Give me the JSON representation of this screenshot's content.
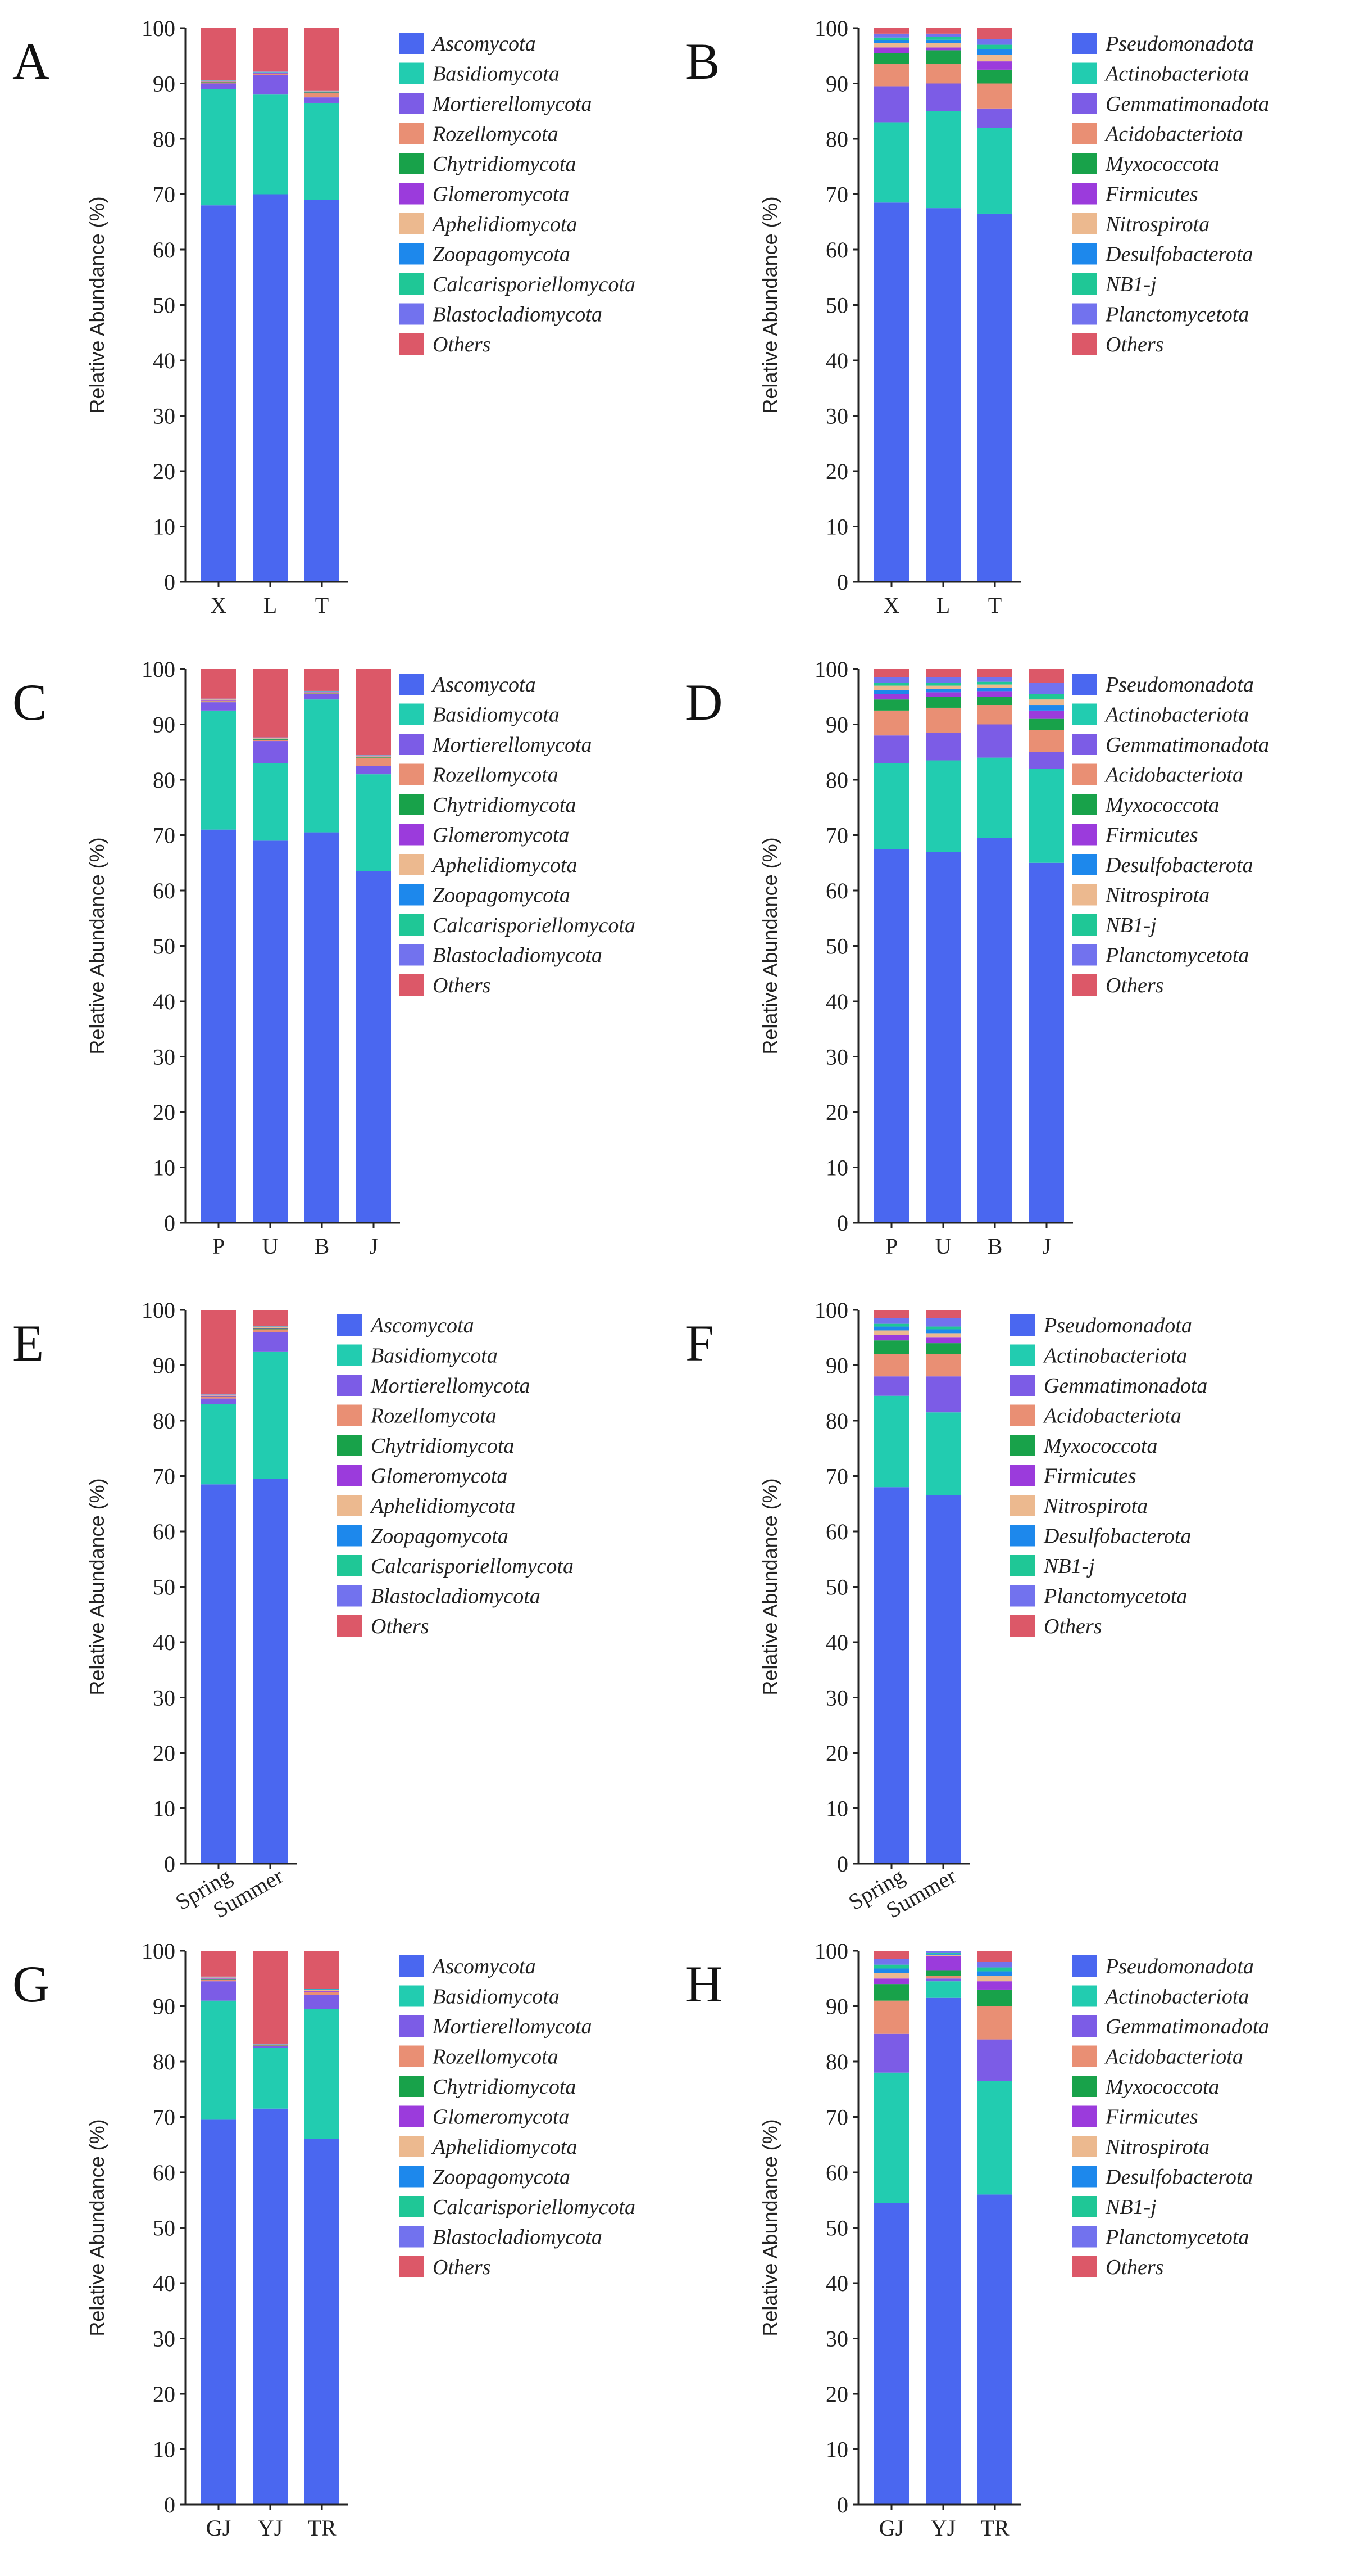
{
  "palette": {
    "Ascomycota": "#4a67f0",
    "Basidiomycota": "#22ccb0",
    "Mortierellomycota": "#7c5ce6",
    "Rozellomycota": "#e98f74",
    "Chytridiomycota": "#18a24a",
    "Glomeromycota": "#9b3bdc",
    "Aphelidiomycota": "#ecb98f",
    "Zoopagomycota": "#1d88ec",
    "Calcarisporiellomycota": "#1fc796",
    "Blastocladiomycota": "#7272ee",
    "Others": "#dc5868",
    "Pseudomonadota": "#4a67f0",
    "Actinobacteriota": "#22ccb0",
    "Gemmatimonadota": "#7c5ce6",
    "Acidobacteriota": "#e98f74",
    "Myxococcota": "#18a24a",
    "Firmicutes": "#9b3bdc",
    "Nitrospirota": "#ecb98f",
    "Desulfobacterota": "#1d88ec",
    "NB1-j": "#1fc796",
    "Planctomycetota": "#7272ee"
  },
  "chart_data": [
    {
      "panel": "A",
      "type": "bar",
      "stacked": true,
      "ylabel": "Relative Abundance (%)",
      "ylim": [
        0,
        100
      ],
      "yticks": [
        "0",
        "10",
        "20",
        "30",
        "40",
        "50",
        "60",
        "70",
        "80",
        "90",
        "100"
      ],
      "categories": [
        "X",
        "L",
        "T"
      ],
      "legend": [
        "Ascomycota",
        "Basidiomycota",
        "Mortierellomycota",
        "Rozellomycota",
        "Chytridiomycota",
        "Glomeromycota",
        "Aphelidiomycota",
        "Zoopagomycota",
        "Calcarisporiellomycota",
        "Blastocladiomycota",
        "Others"
      ],
      "series": [
        {
          "name": "Ascomycota",
          "values": [
            68,
            70,
            69
          ]
        },
        {
          "name": "Basidiomycota",
          "values": [
            21,
            18,
            17.5
          ]
        },
        {
          "name": "Mortierellomycota",
          "values": [
            1,
            3.5,
            1
          ]
        },
        {
          "name": "Rozellomycota",
          "values": [
            0.2,
            0.2,
            0.8
          ]
        },
        {
          "name": "Chytridiomycota",
          "values": [
            0.1,
            0.1,
            0.1
          ]
        },
        {
          "name": "Glomeromycota",
          "values": [
            0.1,
            0.1,
            0.1
          ]
        },
        {
          "name": "Aphelidiomycota",
          "values": [
            0.1,
            0.1,
            0.1
          ]
        },
        {
          "name": "Zoopagomycota",
          "values": [
            0.05,
            0.05,
            0.05
          ]
        },
        {
          "name": "Calcarisporiellomycota",
          "values": [
            0.05,
            0.05,
            0.05
          ]
        },
        {
          "name": "Blastocladiomycota",
          "values": [
            0.05,
            0.05,
            0.05
          ]
        },
        {
          "name": "Others",
          "values": [
            9.35,
            7.95,
            11.25
          ]
        }
      ]
    },
    {
      "panel": "B",
      "type": "bar",
      "stacked": true,
      "ylabel": "Relative Abundance (%)",
      "ylim": [
        0,
        100
      ],
      "yticks": [
        "0",
        "10",
        "20",
        "30",
        "40",
        "50",
        "60",
        "70",
        "80",
        "90",
        "100"
      ],
      "categories": [
        "X",
        "L",
        "T"
      ],
      "legend": [
        "Pseudomonadota",
        "Actinobacteriota",
        "Gemmatimonadota",
        "Acidobacteriota",
        "Myxococcota",
        "Firmicutes",
        "Nitrospirota",
        "Desulfobacterota",
        "NB1-j",
        "Planctomycetota",
        "Others"
      ],
      "series": [
        {
          "name": "Pseudomonadota",
          "values": [
            68.5,
            67.5,
            66.5
          ]
        },
        {
          "name": "Actinobacteriota",
          "values": [
            14.5,
            17.5,
            15.5
          ]
        },
        {
          "name": "Gemmatimonadota",
          "values": [
            6.5,
            5,
            3.5
          ]
        },
        {
          "name": "Acidobacteriota",
          "values": [
            4,
            3.5,
            4.5
          ]
        },
        {
          "name": "Myxococcota",
          "values": [
            2,
            2.5,
            2.5
          ]
        },
        {
          "name": "Firmicutes",
          "values": [
            1,
            0.5,
            1.5
          ]
        },
        {
          "name": "Nitrospirota",
          "values": [
            0.8,
            0.8,
            1.2
          ]
        },
        {
          "name": "Desulfobacterota",
          "values": [
            0.5,
            0.6,
            1
          ]
        },
        {
          "name": "NB1-j",
          "values": [
            0.5,
            0.5,
            0.8
          ]
        },
        {
          "name": "Planctomycetota",
          "values": [
            0.7,
            0.6,
            1
          ]
        },
        {
          "name": "Others",
          "values": [
            1,
            1,
            2
          ]
        }
      ]
    },
    {
      "panel": "C",
      "type": "bar",
      "stacked": true,
      "ylabel": "Relative Abundance (%)",
      "ylim": [
        0,
        100
      ],
      "yticks": [
        "0",
        "10",
        "20",
        "30",
        "40",
        "50",
        "60",
        "70",
        "80",
        "90",
        "100"
      ],
      "categories": [
        "P",
        "U",
        "B",
        "J"
      ],
      "legend": [
        "Ascomycota",
        "Basidiomycota",
        "Mortierellomycota",
        "Rozellomycota",
        "Chytridiomycota",
        "Glomeromycota",
        "Aphelidiomycota",
        "Zoopagomycota",
        "Calcarisporiellomycota",
        "Blastocladiomycota",
        "Others"
      ],
      "series": [
        {
          "name": "Ascomycota",
          "values": [
            71,
            69,
            70.5,
            63.5
          ]
        },
        {
          "name": "Basidiomycota",
          "values": [
            21.5,
            14,
            24,
            17.5
          ]
        },
        {
          "name": "Mortierellomycota",
          "values": [
            1.5,
            4,
            1,
            1.5
          ]
        },
        {
          "name": "Rozellomycota",
          "values": [
            0.2,
            0.2,
            0.1,
            1.5
          ]
        },
        {
          "name": "Chytridiomycota",
          "values": [
            0.1,
            0.1,
            0.1,
            0.1
          ]
        },
        {
          "name": "Glomeromycota",
          "values": [
            0.1,
            0.1,
            0.1,
            0.1
          ]
        },
        {
          "name": "Aphelidiomycota",
          "values": [
            0.1,
            0.1,
            0.1,
            0.1
          ]
        },
        {
          "name": "Zoopagomycota",
          "values": [
            0.05,
            0.05,
            0.05,
            0.05
          ]
        },
        {
          "name": "Calcarisporiellomycota",
          "values": [
            0.05,
            0.05,
            0.05,
            0.05
          ]
        },
        {
          "name": "Blastocladiomycota",
          "values": [
            0.05,
            0.05,
            0.05,
            0.05
          ]
        },
        {
          "name": "Others",
          "values": [
            5.35,
            12.35,
            3.95,
            15.55
          ]
        }
      ]
    },
    {
      "panel": "D",
      "type": "bar",
      "stacked": true,
      "ylabel": "Relative Abundance (%)",
      "ylim": [
        0,
        100
      ],
      "yticks": [
        "0",
        "10",
        "20",
        "30",
        "40",
        "50",
        "60",
        "70",
        "80",
        "90",
        "100"
      ],
      "categories": [
        "P",
        "U",
        "B",
        "J"
      ],
      "legend": [
        "Pseudomonadota",
        "Actinobacteriota",
        "Gemmatimonadota",
        "Acidobacteriota",
        "Myxococcota",
        "Firmicutes",
        "Desulfobacterota",
        "Nitrospirota",
        "NB1-j",
        "Planctomycetota",
        "Others"
      ],
      "series": [
        {
          "name": "Pseudomonadota",
          "values": [
            67.5,
            67,
            69.5,
            65
          ]
        },
        {
          "name": "Actinobacteriota",
          "values": [
            15.5,
            16.5,
            14.5,
            17
          ]
        },
        {
          "name": "Gemmatimonadota",
          "values": [
            5,
            5,
            6,
            3
          ]
        },
        {
          "name": "Acidobacteriota",
          "values": [
            4.5,
            4.5,
            3.5,
            4
          ]
        },
        {
          "name": "Myxococcota",
          "values": [
            2,
            2,
            1.5,
            2
          ]
        },
        {
          "name": "Firmicutes",
          "values": [
            1,
            0.8,
            1,
            1.5
          ]
        },
        {
          "name": "Desulfobacterota",
          "values": [
            0.7,
            0.6,
            0.6,
            1
          ]
        },
        {
          "name": "Nitrospirota",
          "values": [
            0.8,
            0.6,
            0.6,
            1
          ]
        },
        {
          "name": "NB1-j",
          "values": [
            0.5,
            0.5,
            0.5,
            1
          ]
        },
        {
          "name": "Planctomycetota",
          "values": [
            1,
            1,
            0.8,
            2
          ]
        },
        {
          "name": "Others",
          "values": [
            1.5,
            1.5,
            1.5,
            2.5
          ]
        }
      ]
    },
    {
      "panel": "E",
      "type": "bar",
      "stacked": true,
      "ylabel": "Relative Abundance (%)",
      "ylim": [
        0,
        100
      ],
      "yticks": [
        "0",
        "10",
        "20",
        "30",
        "40",
        "50",
        "60",
        "70",
        "80",
        "90",
        "100"
      ],
      "categories": [
        "Spring",
        "Summer"
      ],
      "rotate_categories": true,
      "legend": [
        "Ascomycota",
        "Basidiomycota",
        "Mortierellomycota",
        "Rozellomycota",
        "Chytridiomycota",
        "Glomeromycota",
        "Aphelidiomycota",
        "Zoopagomycota",
        "Calcarisporiellomycota",
        "Blastocladiomycota",
        "Others"
      ],
      "series": [
        {
          "name": "Ascomycota",
          "values": [
            68.5,
            69.5
          ]
        },
        {
          "name": "Basidiomycota",
          "values": [
            14.5,
            23
          ]
        },
        {
          "name": "Mortierellomycota",
          "values": [
            1,
            3.5
          ]
        },
        {
          "name": "Rozellomycota",
          "values": [
            0.3,
            0.5
          ]
        },
        {
          "name": "Chytridiomycota",
          "values": [
            0.1,
            0.1
          ]
        },
        {
          "name": "Glomeromycota",
          "values": [
            0.1,
            0.1
          ]
        },
        {
          "name": "Aphelidiomycota",
          "values": [
            0.1,
            0.3
          ]
        },
        {
          "name": "Zoopagomycota",
          "values": [
            0.05,
            0.05
          ]
        },
        {
          "name": "Calcarisporiellomycota",
          "values": [
            0.05,
            0.05
          ]
        },
        {
          "name": "Blastocladiomycota",
          "values": [
            0.05,
            0.05
          ]
        },
        {
          "name": "Others",
          "values": [
            15.25,
            2.85
          ]
        }
      ]
    },
    {
      "panel": "F",
      "type": "bar",
      "stacked": true,
      "ylabel": "Relative Abundance (%)",
      "ylim": [
        0,
        100
      ],
      "yticks": [
        "0",
        "10",
        "20",
        "30",
        "40",
        "50",
        "60",
        "70",
        "80",
        "90",
        "100"
      ],
      "categories": [
        "Spring",
        "Summer"
      ],
      "rotate_categories": true,
      "legend": [
        "Pseudomonadota",
        "Actinobacteriota",
        "Gemmatimonadota",
        "Acidobacteriota",
        "Myxococcota",
        "Firmicutes",
        "Nitrospirota",
        "Desulfobacterota",
        "NB1-j",
        "Planctomycetota",
        "Others"
      ],
      "series": [
        {
          "name": "Pseudomonadota",
          "values": [
            68,
            66.5
          ]
        },
        {
          "name": "Actinobacteriota",
          "values": [
            16.5,
            15
          ]
        },
        {
          "name": "Gemmatimonadota",
          "values": [
            3.5,
            6.5
          ]
        },
        {
          "name": "Acidobacteriota",
          "values": [
            4,
            4
          ]
        },
        {
          "name": "Myxococcota",
          "values": [
            2.5,
            2
          ]
        },
        {
          "name": "Firmicutes",
          "values": [
            1,
            1
          ]
        },
        {
          "name": "Nitrospirota",
          "values": [
            0.8,
            0.8
          ]
        },
        {
          "name": "Desulfobacterota",
          "values": [
            0.7,
            0.7
          ]
        },
        {
          "name": "NB1-j",
          "values": [
            0.5,
            0.5
          ]
        },
        {
          "name": "Planctomycetota",
          "values": [
            1,
            1.5
          ]
        },
        {
          "name": "Others",
          "values": [
            1.5,
            1.5
          ]
        }
      ]
    },
    {
      "panel": "G",
      "type": "bar",
      "stacked": true,
      "ylabel": "Relative Abundance (%)",
      "ylim": [
        0,
        100
      ],
      "yticks": [
        "0",
        "10",
        "20",
        "30",
        "40",
        "50",
        "60",
        "70",
        "80",
        "90",
        "100"
      ],
      "categories": [
        "GJ",
        "YJ",
        "TR"
      ],
      "legend": [
        "Ascomycota",
        "Basidiomycota",
        "Mortierellomycota",
        "Rozellomycota",
        "Chytridiomycota",
        "Glomeromycota",
        "Aphelidiomycota",
        "Zoopagomycota",
        "Calcarisporiellomycota",
        "Blastocladiomycota",
        "Others"
      ],
      "series": [
        {
          "name": "Ascomycota",
          "values": [
            69.5,
            71.5,
            66
          ]
        },
        {
          "name": "Basidiomycota",
          "values": [
            21.5,
            11,
            23.5
          ]
        },
        {
          "name": "Mortierellomycota",
          "values": [
            3.5,
            0.3,
            2.5
          ]
        },
        {
          "name": "Rozellomycota",
          "values": [
            0.3,
            0.1,
            0.5
          ]
        },
        {
          "name": "Chytridiomycota",
          "values": [
            0.1,
            0.1,
            0.1
          ]
        },
        {
          "name": "Glomeromycota",
          "values": [
            0.1,
            0.05,
            0.1
          ]
        },
        {
          "name": "Aphelidiomycota",
          "values": [
            0.2,
            0.05,
            0.3
          ]
        },
        {
          "name": "Zoopagomycota",
          "values": [
            0.05,
            0.05,
            0.05
          ]
        },
        {
          "name": "Calcarisporiellomycota",
          "values": [
            0.05,
            0.05,
            0.05
          ]
        },
        {
          "name": "Blastocladiomycota",
          "values": [
            0.05,
            0.05,
            0.05
          ]
        },
        {
          "name": "Others",
          "values": [
            4.65,
            16.75,
            6.85
          ]
        }
      ]
    },
    {
      "panel": "H",
      "type": "bar",
      "stacked": true,
      "ylabel": "Relative Abundance (%)",
      "ylim": [
        0,
        100
      ],
      "yticks": [
        "0",
        "10",
        "20",
        "30",
        "40",
        "50",
        "60",
        "70",
        "80",
        "90",
        "100"
      ],
      "categories": [
        "GJ",
        "YJ",
        "TR"
      ],
      "legend": [
        "Pseudomonadota",
        "Actinobacteriota",
        "Gemmatimonadota",
        "Acidobacteriota",
        "Myxococcota",
        "Firmicutes",
        "Nitrospirota",
        "Desulfobacterota",
        "NB1-j",
        "Planctomycetota",
        "Others"
      ],
      "series": [
        {
          "name": "Pseudomonadota",
          "values": [
            54.5,
            91.5,
            56
          ]
        },
        {
          "name": "Actinobacteriota",
          "values": [
            23.5,
            3,
            20.5
          ]
        },
        {
          "name": "Gemmatimonadota",
          "values": [
            7,
            0.5,
            7.5
          ]
        },
        {
          "name": "Acidobacteriota",
          "values": [
            6,
            0.5,
            6
          ]
        },
        {
          "name": "Myxococcota",
          "values": [
            3,
            1,
            3
          ]
        },
        {
          "name": "Firmicutes",
          "values": [
            1,
            2.5,
            1.5
          ]
        },
        {
          "name": "Nitrospirota",
          "values": [
            1,
            0.3,
            1
          ]
        },
        {
          "name": "Desulfobacterota",
          "values": [
            0.8,
            0.2,
            0.8
          ]
        },
        {
          "name": "NB1-j",
          "values": [
            0.7,
            0.2,
            0.7
          ]
        },
        {
          "name": "Planctomycetota",
          "values": [
            1,
            0.3,
            1
          ]
        },
        {
          "name": "Others",
          "values": [
            1.5,
            0,
            2
          ]
        }
      ]
    }
  ]
}
